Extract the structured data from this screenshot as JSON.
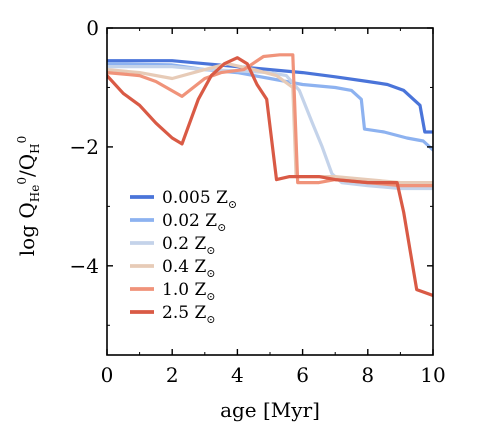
{
  "chart_data": {
    "type": "line",
    "title": "",
    "xlabel": "age [Myr]",
    "ylabel_parts": {
      "prefix": "log Q",
      "sub1": "He",
      "sup1": "0",
      "mid": "/Q",
      "sub2": "H",
      "sup2": "0"
    },
    "xlim": [
      0,
      10
    ],
    "ylim": [
      -5.5,
      0
    ],
    "xticks": [
      0,
      2,
      4,
      6,
      8,
      10
    ],
    "yticks": [
      0,
      -2,
      -4
    ],
    "xtick_labels": [
      "0",
      "2",
      "4",
      "6",
      "8",
      "10"
    ],
    "ytick_labels": [
      "0",
      "−2",
      "−4"
    ],
    "grid": false,
    "legend_position": "lower-left",
    "series": [
      {
        "name": "0.005",
        "unit": "Z",
        "color": "#4a74d9",
        "points": [
          [
            0,
            -0.55
          ],
          [
            2,
            -0.55
          ],
          [
            3,
            -0.6
          ],
          [
            4,
            -0.65
          ],
          [
            5,
            -0.7
          ],
          [
            6,
            -0.75
          ],
          [
            7,
            -0.82
          ],
          [
            8,
            -0.9
          ],
          [
            8.6,
            -0.95
          ],
          [
            9.1,
            -1.05
          ],
          [
            9.6,
            -1.3
          ],
          [
            9.75,
            -1.75
          ],
          [
            10,
            -1.75
          ]
        ]
      },
      {
        "name": "0.02",
        "unit": "Z",
        "color": "#8db2f0",
        "points": [
          [
            0,
            -0.6
          ],
          [
            2,
            -0.62
          ],
          [
            3,
            -0.7
          ],
          [
            4,
            -0.75
          ],
          [
            5,
            -0.85
          ],
          [
            6,
            -0.95
          ],
          [
            7,
            -1.0
          ],
          [
            7.5,
            -1.05
          ],
          [
            7.8,
            -1.2
          ],
          [
            7.9,
            -1.7
          ],
          [
            8.5,
            -1.75
          ],
          [
            9.2,
            -1.85
          ],
          [
            9.7,
            -1.9
          ],
          [
            10,
            -2.05
          ]
        ]
      },
      {
        "name": "0.2",
        "unit": "Z",
        "color": "#c4d3ea",
        "points": [
          [
            0,
            -0.65
          ],
          [
            2,
            -0.65
          ],
          [
            3,
            -0.7
          ],
          [
            4,
            -0.72
          ],
          [
            5,
            -0.75
          ],
          [
            5.5,
            -0.8
          ],
          [
            5.9,
            -1.05
          ],
          [
            6.3,
            -1.6
          ],
          [
            6.6,
            -2.0
          ],
          [
            6.9,
            -2.45
          ],
          [
            7.2,
            -2.6
          ],
          [
            8,
            -2.65
          ],
          [
            9,
            -2.7
          ],
          [
            10,
            -2.7
          ]
        ]
      },
      {
        "name": "0.4",
        "unit": "Z",
        "color": "#e7cbb7",
        "points": [
          [
            0,
            -0.7
          ],
          [
            1,
            -0.75
          ],
          [
            2,
            -0.85
          ],
          [
            3,
            -0.7
          ],
          [
            3.7,
            -0.6
          ],
          [
            4.5,
            -0.7
          ],
          [
            5.2,
            -0.8
          ],
          [
            5.7,
            -1.0
          ],
          [
            5.8,
            -2.5
          ],
          [
            7,
            -2.5
          ],
          [
            8,
            -2.55
          ],
          [
            9,
            -2.6
          ],
          [
            10,
            -2.6
          ]
        ]
      },
      {
        "name": "1.0",
        "unit": "Z",
        "color": "#f0937a",
        "points": [
          [
            0,
            -0.75
          ],
          [
            1,
            -0.8
          ],
          [
            1.5,
            -0.9
          ],
          [
            2.3,
            -1.15
          ],
          [
            3,
            -0.85
          ],
          [
            3.5,
            -0.75
          ],
          [
            4.2,
            -0.7
          ],
          [
            4.8,
            -0.48
          ],
          [
            5.3,
            -0.45
          ],
          [
            5.7,
            -0.45
          ],
          [
            5.85,
            -2.6
          ],
          [
            6.5,
            -2.6
          ],
          [
            7,
            -2.55
          ],
          [
            8,
            -2.6
          ],
          [
            9,
            -2.65
          ],
          [
            10,
            -2.65
          ]
        ]
      },
      {
        "name": "2.5",
        "unit": "Z",
        "color": "#d95a45",
        "points": [
          [
            0,
            -0.8
          ],
          [
            0.5,
            -1.1
          ],
          [
            1,
            -1.3
          ],
          [
            1.5,
            -1.6
          ],
          [
            2,
            -1.85
          ],
          [
            2.3,
            -1.95
          ],
          [
            2.8,
            -1.2
          ],
          [
            3.2,
            -0.8
          ],
          [
            3.6,
            -0.6
          ],
          [
            4.0,
            -0.5
          ],
          [
            4.3,
            -0.6
          ],
          [
            4.6,
            -0.95
          ],
          [
            4.9,
            -1.2
          ],
          [
            5.2,
            -2.55
          ],
          [
            5.6,
            -2.5
          ],
          [
            6.5,
            -2.5
          ],
          [
            7,
            -2.55
          ],
          [
            8,
            -2.6
          ],
          [
            8.9,
            -2.6
          ],
          [
            9.1,
            -3.1
          ],
          [
            9.5,
            -4.4
          ],
          [
            10,
            -4.5
          ]
        ]
      }
    ]
  }
}
